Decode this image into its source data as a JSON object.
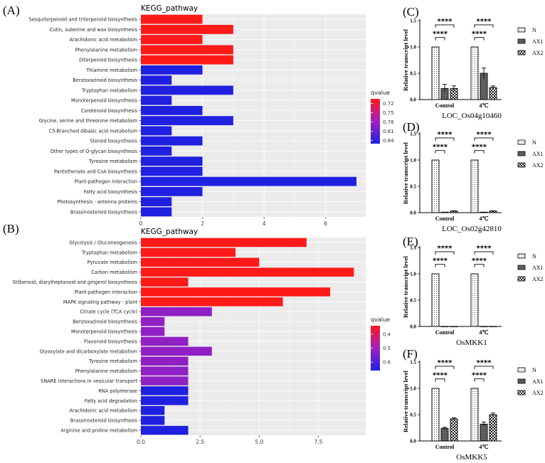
{
  "colors": {
    "panel_bg": "#ebebeb",
    "grid": "#ffffff",
    "q_high": "#ff1a1a",
    "q_mid": "#a020c0",
    "q_low": "#2020e0",
    "star": "#000000"
  },
  "panels": {
    "a": {
      "label": "(A)"
    },
    "b": {
      "label": "(B)"
    },
    "c": {
      "label": "(C)",
      "gene": "LOC_Os04g10460"
    },
    "d": {
      "label": "(D)",
      "gene": "LOC_Os02g42810"
    },
    "e": {
      "label": "(E)",
      "gene": "OsMKK1"
    },
    "f": {
      "label": "(F)",
      "gene": "OsMKK5"
    }
  },
  "chart_data": [
    {
      "id": "A",
      "type": "bar",
      "orientation": "horizontal",
      "title": "KEGG_pathway",
      "xlabel": "",
      "ylabel": "",
      "xlim": [
        0,
        7.3
      ],
      "xticks": [
        0,
        2,
        4,
        6
      ],
      "tick_labels": [
        "0",
        "2",
        "4",
        "6"
      ],
      "legend": {
        "title": "qvalue",
        "ticks": [
          0.72,
          0.75,
          0.78,
          0.81,
          0.84
        ],
        "tick_labels": [
          "0.72",
          "0.75",
          "0.78",
          "0.81",
          "0.84"
        ],
        "range": [
          0.705,
          0.85
        ],
        "position": "right"
      },
      "categories": [
        "Sesquiterpenoid and triterpenoid biosynthesis",
        "Cutin, suberine and wax biosynthesis",
        "Arachidonic acid metabolism",
        "Phenylalanine metabolism",
        "Diterpenoid biosynthesis",
        "Thiamine metabolism",
        "Benzoxazinoid biosynthesis",
        "Tryptophan metabolism",
        "Monoterpenoid biosynthesis",
        "Carotenoid biosynthesis",
        "Glycine, serine and threonine metabolism",
        "C5-Branched dibasic acid metabolism",
        "Steroid biosynthesis",
        "Other types of O-glycan biosynthesis",
        "Tyrosine metabolism",
        "Pantothenate and CoA biosynthesis",
        "Plant-pathogen interaction",
        "Fatty acid biosynthesis",
        "Photosynthesis - antenna proteins",
        "Brassinosteroid biosynthesis"
      ],
      "values": [
        2,
        3,
        2,
        3,
        3,
        2,
        1,
        3,
        1,
        2,
        3,
        1,
        2,
        1,
        2,
        2,
        7,
        2,
        1,
        1
      ],
      "qvalues": [
        0.705,
        0.705,
        0.705,
        0.705,
        0.705,
        0.85,
        0.85,
        0.85,
        0.85,
        0.85,
        0.85,
        0.85,
        0.85,
        0.85,
        0.85,
        0.85,
        0.85,
        0.85,
        0.85,
        0.85
      ]
    },
    {
      "id": "B",
      "type": "bar",
      "orientation": "horizontal",
      "title": "KEGG_pathway",
      "xlabel": "",
      "ylabel": "",
      "xlim": [
        0,
        9.5
      ],
      "xticks": [
        0,
        2.5,
        5,
        7.5
      ],
      "tick_labels": [
        "0.0",
        "2.5",
        "5.0",
        "7.5"
      ],
      "legend": {
        "title": "qvalue",
        "ticks": [
          0.4,
          0.5,
          0.6
        ],
        "tick_labels": [
          "0.4",
          "0.5",
          "0.6"
        ],
        "range": [
          0.34,
          0.66
        ],
        "position": "right"
      },
      "categories": [
        "Glycolysis / Gluconeogenesis",
        "Tryptophan metabolism",
        "Pyruvate metabolism",
        "Carbon metabolism",
        "Stilbenoid, diarylheptanoid and gingerol biosynthesis",
        "Plant-pathogen interaction",
        "MAPK signaling pathway - plant",
        "Citrate cycle (TCA cycle)",
        "Benzoxazinoid biosynthesis",
        "Monoterpenoid biosynthesis",
        "Flavonoid biosynthesis",
        "Glyoxylate and dicarboxylate metabolism",
        "Tyrosine metabolism",
        "Phenylalanine metabolism",
        "SNARE interactions in vesicular transport",
        "RNA polymerase",
        "Fatty acid degradation",
        "Arachidonic acid metabolism",
        "Brassinosteroid biosynthesis",
        "Arginine and proline metabolism"
      ],
      "values": [
        7,
        4,
        5,
        9,
        2,
        8,
        6,
        3,
        1,
        1,
        2,
        3,
        2,
        2,
        2,
        2,
        2,
        1,
        1,
        2
      ],
      "qvalues": [
        0.34,
        0.34,
        0.34,
        0.34,
        0.34,
        0.34,
        0.34,
        0.52,
        0.52,
        0.52,
        0.52,
        0.52,
        0.52,
        0.52,
        0.52,
        0.66,
        0.66,
        0.66,
        0.66,
        0.66
      ]
    },
    {
      "id": "C",
      "type": "bar",
      "title": "LOC_Os04g10460",
      "categories": [
        "Control",
        "4℃"
      ],
      "series": [
        {
          "name": "N",
          "values": [
            1.0,
            1.0
          ],
          "errors": [
            0,
            0
          ]
        },
        {
          "name": "AX1",
          "values": [
            0.21,
            0.5
          ],
          "errors": [
            0.08,
            0.1
          ]
        },
        {
          "name": "AX2",
          "values": [
            0.21,
            0.23
          ],
          "errors": [
            0.05,
            0.03
          ]
        }
      ],
      "ylabel": "Relative transcript level",
      "ylim": [
        0,
        1.5
      ],
      "yticks": [
        0,
        0.5,
        1.0,
        1.5
      ],
      "ytick_labels": [
        "0.0",
        "0.5",
        "1.0",
        "1.5"
      ],
      "significance": "****",
      "legend_position": "right"
    },
    {
      "id": "D",
      "type": "bar",
      "title": "LOC_Os02g42810",
      "categories": [
        "Control",
        "4℃"
      ],
      "series": [
        {
          "name": "N",
          "values": [
            1.0,
            1.0
          ],
          "errors": [
            0,
            0
          ]
        },
        {
          "name": "AX1",
          "values": [
            0.01,
            0.01
          ],
          "errors": [
            0,
            0
          ]
        },
        {
          "name": "AX2",
          "values": [
            0.03,
            0.03
          ],
          "errors": [
            0.005,
            0.005
          ]
        }
      ],
      "ylabel": "Relative transcript level",
      "ylim": [
        0,
        1.5
      ],
      "yticks": [
        0,
        0.5,
        1.0,
        1.5
      ],
      "ytick_labels": [
        "0.0",
        "0.5",
        "1.0",
        "1.5"
      ],
      "significance": "****",
      "legend_position": "right"
    },
    {
      "id": "E",
      "type": "bar",
      "title": "OsMKK1",
      "categories": [
        "Control",
        "4℃"
      ],
      "series": [
        {
          "name": "N",
          "values": [
            1.0,
            1.0
          ],
          "errors": [
            0,
            0
          ]
        },
        {
          "name": "AX1",
          "values": [
            0.0,
            0.0
          ],
          "errors": [
            0,
            0
          ]
        },
        {
          "name": "AX2",
          "values": [
            0.0,
            0.0
          ],
          "errors": [
            0,
            0
          ]
        }
      ],
      "ylabel": "Relative transcript level",
      "ylim": [
        0,
        1.5
      ],
      "yticks": [
        0,
        0.5,
        1.0,
        1.5
      ],
      "ytick_labels": [
        "0.0",
        "0.5",
        "1.0",
        "1.5"
      ],
      "significance": "****",
      "legend_position": "right"
    },
    {
      "id": "F",
      "type": "bar",
      "title": "OsMKK5",
      "categories": [
        "Control",
        "4℃"
      ],
      "series": [
        {
          "name": "N",
          "values": [
            1.0,
            1.0
          ],
          "errors": [
            0,
            0
          ]
        },
        {
          "name": "AX1",
          "values": [
            0.24,
            0.32
          ],
          "errors": [
            0.02,
            0.04
          ]
        },
        {
          "name": "AX2",
          "values": [
            0.42,
            0.5
          ],
          "errors": [
            0.02,
            0.03
          ]
        }
      ],
      "ylabel": "Relative transcript level",
      "ylim": [
        0,
        1.5
      ],
      "yticks": [
        0,
        0.5,
        1.0,
        1.5
      ],
      "ytick_labels": [
        "0.0",
        "0.5",
        "1.0",
        "1.5"
      ],
      "significance": "****",
      "legend_position": "right"
    }
  ]
}
